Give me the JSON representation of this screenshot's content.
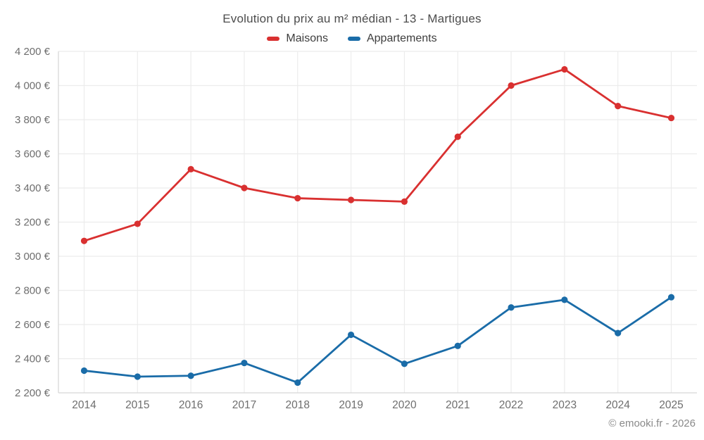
{
  "chart_data": {
    "type": "line",
    "title": "Evolution du prix au m² médian - 13 - Martigues",
    "categories": [
      "2014",
      "2015",
      "2016",
      "2017",
      "2018",
      "2019",
      "2020",
      "2021",
      "2022",
      "2023",
      "2024",
      "2025"
    ],
    "series": [
      {
        "name": "Maisons",
        "color": "#d93030",
        "values": [
          3090,
          3190,
          3510,
          3400,
          3340,
          3330,
          3320,
          3700,
          4000,
          4095,
          3880,
          3810
        ]
      },
      {
        "name": "Appartements",
        "color": "#1a6ca8",
        "values": [
          2330,
          2295,
          2300,
          2375,
          2260,
          2540,
          2370,
          2475,
          2700,
          2745,
          2550,
          2760
        ]
      }
    ],
    "xlabel": "",
    "ylabel": "",
    "ylim": [
      2200,
      4200
    ],
    "yticks": [
      2200,
      2400,
      2600,
      2800,
      3000,
      3200,
      3400,
      3600,
      3800,
      4000,
      4200
    ],
    "ytick_labels": [
      "2 200 €",
      "2 400 €",
      "2 600 €",
      "2 800 €",
      "3 000 €",
      "3 200 €",
      "3 400 €",
      "3 600 €",
      "3 800 €",
      "4 000 €",
      "4 200 €"
    ],
    "grid": true,
    "legend_position": "top-center"
  },
  "footer": {
    "copyright": "© emooki.fr - 2026"
  },
  "colors": {
    "background": "#ffffff",
    "grid_line": "#ececec",
    "axis_line": "#d6d6d6",
    "tick_text": "#6e6e6e",
    "title_text": "#4c4c4c",
    "legend_text": "#3d3d3d",
    "footer_text": "#8a8a8a"
  }
}
